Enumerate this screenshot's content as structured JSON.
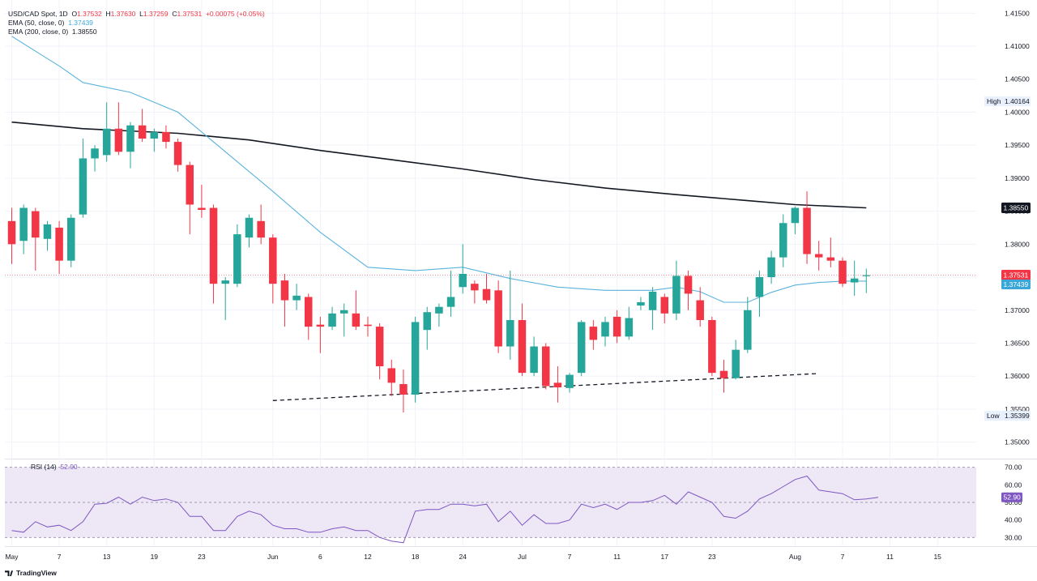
{
  "header": {
    "symbol": "USD/CAD Spot, 1D",
    "o_label": "O",
    "o_value": "1.37532",
    "h_label": "H",
    "h_value": "1.37630",
    "l_label": "L",
    "l_value": "1.37259",
    "c_label": "C",
    "c_value": "1.37531",
    "change": "+0.00075 (+0.05%)",
    "ema50_label": "EMA (50, close, 0)",
    "ema50_value": "1.37439",
    "ema200_label": "EMA (200, close, 0)",
    "ema200_value": "1.38550"
  },
  "rsi_panel": {
    "label": "RSI (14)",
    "value": "52.90"
  },
  "brand": {
    "name": "TradingView"
  },
  "colors": {
    "up": "#26a69a",
    "down": "#f23645",
    "ema50": "#5ab3dc",
    "ema200": "#131722",
    "rsi_line": "#7e57c2",
    "rsi_band": "#ede7f6",
    "last_price": "#f23645"
  },
  "chart_data": [
    {
      "type": "candlestick",
      "title": "USD/CAD Spot, 1D",
      "y_range": [
        1.3475,
        1.417
      ],
      "y_ticks": [
        "1.35000",
        "1.35500",
        "1.36000",
        "1.36500",
        "1.37000",
        "1.37500",
        "1.38000",
        "1.38500",
        "1.39000",
        "1.39500",
        "1.40000",
        "1.40500",
        "1.41000",
        "1.41500"
      ],
      "x_labels": [
        {
          "label": "May",
          "index": 0
        },
        {
          "label": "7",
          "index": 4
        },
        {
          "label": "13",
          "index": 8
        },
        {
          "label": "19",
          "index": 12
        },
        {
          "label": "23",
          "index": 16
        },
        {
          "label": "Jun",
          "index": 22
        },
        {
          "label": "6",
          "index": 26
        },
        {
          "label": "12",
          "index": 30
        },
        {
          "label": "18",
          "index": 34
        },
        {
          "label": "24",
          "index": 38
        },
        {
          "label": "Jul",
          "index": 43
        },
        {
          "label": "7",
          "index": 47
        },
        {
          "label": "11",
          "index": 51
        },
        {
          "label": "17",
          "index": 55
        },
        {
          "label": "23",
          "index": 59
        },
        {
          "label": "Aug",
          "index": 66
        },
        {
          "label": "7",
          "index": 70
        },
        {
          "label": "11",
          "index": 74
        },
        {
          "label": "15",
          "index": 78
        }
      ],
      "candles": [
        {
          "o": 1.3835,
          "h": 1.3855,
          "l": 1.377,
          "c": 1.38
        },
        {
          "o": 1.3805,
          "h": 1.386,
          "l": 1.3785,
          "c": 1.3855
        },
        {
          "o": 1.385,
          "h": 1.3855,
          "l": 1.376,
          "c": 1.381
        },
        {
          "o": 1.3808,
          "h": 1.3835,
          "l": 1.379,
          "c": 1.383
        },
        {
          "o": 1.3825,
          "h": 1.3835,
          "l": 1.3755,
          "c": 1.3775
        },
        {
          "o": 1.3775,
          "h": 1.3845,
          "l": 1.3765,
          "c": 1.384
        },
        {
          "o": 1.3845,
          "h": 1.396,
          "l": 1.384,
          "c": 1.393
        },
        {
          "o": 1.393,
          "h": 1.395,
          "l": 1.391,
          "c": 1.3945
        },
        {
          "o": 1.3935,
          "h": 1.4015,
          "l": 1.3925,
          "c": 1.3975
        },
        {
          "o": 1.3975,
          "h": 1.4015,
          "l": 1.3935,
          "c": 1.394
        },
        {
          "o": 1.394,
          "h": 1.3985,
          "l": 1.3915,
          "c": 1.398
        },
        {
          "o": 1.398,
          "h": 1.4005,
          "l": 1.3955,
          "c": 1.396
        },
        {
          "o": 1.396,
          "h": 1.3975,
          "l": 1.394,
          "c": 1.397
        },
        {
          "o": 1.397,
          "h": 1.398,
          "l": 1.3945,
          "c": 1.3955
        },
        {
          "o": 1.3955,
          "h": 1.396,
          "l": 1.391,
          "c": 1.392
        },
        {
          "o": 1.392,
          "h": 1.3925,
          "l": 1.3815,
          "c": 1.386
        },
        {
          "o": 1.3855,
          "h": 1.389,
          "l": 1.384,
          "c": 1.3852
        },
        {
          "o": 1.3855,
          "h": 1.386,
          "l": 1.371,
          "c": 1.374
        },
        {
          "o": 1.374,
          "h": 1.375,
          "l": 1.3685,
          "c": 1.3745
        },
        {
          "o": 1.374,
          "h": 1.383,
          "l": 1.3735,
          "c": 1.3815
        },
        {
          "o": 1.381,
          "h": 1.3845,
          "l": 1.3795,
          "c": 1.384
        },
        {
          "o": 1.3835,
          "h": 1.386,
          "l": 1.38,
          "c": 1.381
        },
        {
          "o": 1.381,
          "h": 1.3815,
          "l": 1.371,
          "c": 1.374
        },
        {
          "o": 1.3745,
          "h": 1.3755,
          "l": 1.3675,
          "c": 1.3715
        },
        {
          "o": 1.3715,
          "h": 1.374,
          "l": 1.37,
          "c": 1.3722
        },
        {
          "o": 1.372,
          "h": 1.3725,
          "l": 1.3655,
          "c": 1.3675
        },
        {
          "o": 1.3678,
          "h": 1.369,
          "l": 1.3635,
          "c": 1.3675
        },
        {
          "o": 1.3675,
          "h": 1.3705,
          "l": 1.367,
          "c": 1.3695
        },
        {
          "o": 1.3695,
          "h": 1.371,
          "l": 1.366,
          "c": 1.37
        },
        {
          "o": 1.3695,
          "h": 1.373,
          "l": 1.367,
          "c": 1.3675
        },
        {
          "o": 1.3678,
          "h": 1.369,
          "l": 1.366,
          "c": 1.3676
        },
        {
          "o": 1.3675,
          "h": 1.368,
          "l": 1.3595,
          "c": 1.3615
        },
        {
          "o": 1.3612,
          "h": 1.3625,
          "l": 1.357,
          "c": 1.359
        },
        {
          "o": 1.3588,
          "h": 1.361,
          "l": 1.3545,
          "c": 1.3572
        },
        {
          "o": 1.3572,
          "h": 1.369,
          "l": 1.356,
          "c": 1.3682
        },
        {
          "o": 1.367,
          "h": 1.3705,
          "l": 1.364,
          "c": 1.3697
        },
        {
          "o": 1.3695,
          "h": 1.371,
          "l": 1.3675,
          "c": 1.3705
        },
        {
          "o": 1.3705,
          "h": 1.376,
          "l": 1.369,
          "c": 1.372
        },
        {
          "o": 1.3735,
          "h": 1.38,
          "l": 1.3725,
          "c": 1.3755
        },
        {
          "o": 1.374,
          "h": 1.3745,
          "l": 1.371,
          "c": 1.373
        },
        {
          "o": 1.3732,
          "h": 1.3755,
          "l": 1.371,
          "c": 1.3715
        },
        {
          "o": 1.373,
          "h": 1.3745,
          "l": 1.3635,
          "c": 1.3645
        },
        {
          "o": 1.3645,
          "h": 1.376,
          "l": 1.3625,
          "c": 1.3685
        },
        {
          "o": 1.3685,
          "h": 1.371,
          "l": 1.36,
          "c": 1.3605
        },
        {
          "o": 1.3605,
          "h": 1.366,
          "l": 1.36,
          "c": 1.3645
        },
        {
          "o": 1.3645,
          "h": 1.365,
          "l": 1.358,
          "c": 1.3585
        },
        {
          "o": 1.359,
          "h": 1.3615,
          "l": 1.356,
          "c": 1.3583
        },
        {
          "o": 1.3582,
          "h": 1.3605,
          "l": 1.3575,
          "c": 1.3602
        },
        {
          "o": 1.3605,
          "h": 1.3685,
          "l": 1.36,
          "c": 1.3682
        },
        {
          "o": 1.3675,
          "h": 1.3685,
          "l": 1.364,
          "c": 1.3655
        },
        {
          "o": 1.366,
          "h": 1.369,
          "l": 1.3645,
          "c": 1.3682
        },
        {
          "o": 1.369,
          "h": 1.37,
          "l": 1.365,
          "c": 1.366
        },
        {
          "o": 1.366,
          "h": 1.3705,
          "l": 1.3655,
          "c": 1.3688
        },
        {
          "o": 1.3707,
          "h": 1.372,
          "l": 1.37,
          "c": 1.3712
        },
        {
          "o": 1.37,
          "h": 1.3735,
          "l": 1.367,
          "c": 1.3728
        },
        {
          "o": 1.372,
          "h": 1.3725,
          "l": 1.368,
          "c": 1.3695
        },
        {
          "o": 1.3695,
          "h": 1.3775,
          "l": 1.3685,
          "c": 1.3752
        },
        {
          "o": 1.3752,
          "h": 1.376,
          "l": 1.37,
          "c": 1.3725
        },
        {
          "o": 1.3715,
          "h": 1.3735,
          "l": 1.3675,
          "c": 1.3685
        },
        {
          "o": 1.3685,
          "h": 1.369,
          "l": 1.36,
          "c": 1.3605
        },
        {
          "o": 1.3608,
          "h": 1.3625,
          "l": 1.3575,
          "c": 1.3597
        },
        {
          "o": 1.3597,
          "h": 1.3655,
          "l": 1.3595,
          "c": 1.364
        },
        {
          "o": 1.364,
          "h": 1.372,
          "l": 1.3635,
          "c": 1.37
        },
        {
          "o": 1.372,
          "h": 1.376,
          "l": 1.369,
          "c": 1.375
        },
        {
          "o": 1.375,
          "h": 1.379,
          "l": 1.374,
          "c": 1.378
        },
        {
          "o": 1.378,
          "h": 1.3845,
          "l": 1.3765,
          "c": 1.3832
        },
        {
          "o": 1.3832,
          "h": 1.3857,
          "l": 1.3815,
          "c": 1.3855
        },
        {
          "o": 1.3855,
          "h": 1.388,
          "l": 1.377,
          "c": 1.3785
        },
        {
          "o": 1.3785,
          "h": 1.3805,
          "l": 1.376,
          "c": 1.378
        },
        {
          "o": 1.378,
          "h": 1.381,
          "l": 1.3765,
          "c": 1.3775
        },
        {
          "o": 1.3775,
          "h": 1.378,
          "l": 1.3735,
          "c": 1.374
        },
        {
          "o": 1.3742,
          "h": 1.3775,
          "l": 1.3722,
          "c": 1.3748
        },
        {
          "o": 1.3753,
          "h": 1.3763,
          "l": 1.3726,
          "c": 1.3753
        }
      ],
      "ema50": [
        [
          0,
          1.4115
        ],
        [
          4,
          1.407
        ],
        [
          6,
          1.4045
        ],
        [
          10,
          1.403
        ],
        [
          14,
          1.4
        ],
        [
          18,
          1.394
        ],
        [
          22,
          1.388
        ],
        [
          26,
          1.3818
        ],
        [
          30,
          1.3765
        ],
        [
          34,
          1.376
        ],
        [
          38,
          1.3765
        ],
        [
          42,
          1.3748
        ],
        [
          46,
          1.3735
        ],
        [
          50,
          1.373
        ],
        [
          54,
          1.373
        ],
        [
          56,
          1.3735
        ],
        [
          58,
          1.3728
        ],
        [
          60,
          1.3712
        ],
        [
          62,
          1.3712
        ],
        [
          64,
          1.3727
        ],
        [
          66,
          1.3738
        ],
        [
          68,
          1.3742
        ],
        [
          70,
          1.3744
        ],
        [
          72,
          1.3744
        ]
      ],
      "ema200": [
        [
          0,
          1.3985
        ],
        [
          6,
          1.3975
        ],
        [
          14,
          1.3968
        ],
        [
          20,
          1.3958
        ],
        [
          26,
          1.3942
        ],
        [
          32,
          1.3928
        ],
        [
          38,
          1.3914
        ],
        [
          44,
          1.3898
        ],
        [
          50,
          1.3885
        ],
        [
          56,
          1.3875
        ],
        [
          62,
          1.3866
        ],
        [
          66,
          1.386
        ],
        [
          72,
          1.3855
        ]
      ],
      "trendline": {
        "start": [
          22,
          1.3563
        ],
        "end": [
          68,
          1.3604
        ],
        "style": "dashed"
      },
      "high_marker": {
        "label": "High",
        "value": 1.40164,
        "text": "1.40164"
      },
      "low_marker": {
        "label": "Low",
        "value": 1.35399,
        "text": "1.35399"
      },
      "last_price": {
        "value": 1.37531,
        "text": "1.37531"
      },
      "ema200_tag": {
        "value": 1.3855,
        "text": "1.38550"
      },
      "ema50_tag": {
        "value": 1.37439,
        "text": "1.37439"
      }
    },
    {
      "type": "line",
      "title": "RSI (14)",
      "y_range": [
        26,
        74
      ],
      "y_ticks": [
        "30.00",
        "40.00",
        "50.00",
        "60.00",
        "70.00"
      ],
      "overbought": 70,
      "oversold": 30,
      "midline": 50,
      "values": [
        [
          0,
          34
        ],
        [
          1,
          33
        ],
        [
          2,
          39
        ],
        [
          3,
          36
        ],
        [
          4,
          37
        ],
        [
          5,
          34
        ],
        [
          6,
          39
        ],
        [
          7,
          49
        ],
        [
          8,
          49.5
        ],
        [
          9,
          53
        ],
        [
          10,
          49
        ],
        [
          11,
          53
        ],
        [
          12,
          51
        ],
        [
          13,
          52
        ],
        [
          14,
          50
        ],
        [
          15,
          42
        ],
        [
          16,
          42
        ],
        [
          17,
          34
        ],
        [
          18,
          34
        ],
        [
          19,
          42
        ],
        [
          20,
          45
        ],
        [
          21,
          43
        ],
        [
          22,
          37
        ],
        [
          23,
          35
        ],
        [
          24,
          35
        ],
        [
          25,
          33
        ],
        [
          26,
          33
        ],
        [
          27,
          35
        ],
        [
          28,
          36
        ],
        [
          29,
          34
        ],
        [
          30,
          34
        ],
        [
          31,
          30
        ],
        [
          32,
          28
        ],
        [
          33,
          27
        ],
        [
          34,
          45
        ],
        [
          35,
          46
        ],
        [
          36,
          46
        ],
        [
          37,
          49
        ],
        [
          38,
          49
        ],
        [
          39,
          48
        ],
        [
          40,
          49
        ],
        [
          41,
          39
        ],
        [
          42,
          45
        ],
        [
          43,
          37
        ],
        [
          44,
          43
        ],
        [
          45,
          38
        ],
        [
          46,
          38
        ],
        [
          47,
          40
        ],
        [
          48,
          49
        ],
        [
          49,
          47
        ],
        [
          50,
          49
        ],
        [
          51,
          46
        ],
        [
          52,
          50
        ],
        [
          53,
          50
        ],
        [
          54,
          51
        ],
        [
          55,
          54
        ],
        [
          56,
          49
        ],
        [
          57,
          56
        ],
        [
          58,
          53
        ],
        [
          59,
          50
        ],
        [
          60,
          42
        ],
        [
          61,
          41
        ],
        [
          62,
          45
        ],
        [
          63,
          52
        ],
        [
          64,
          55
        ],
        [
          65,
          59
        ],
        [
          66,
          63
        ],
        [
          67,
          65
        ],
        [
          68,
          57
        ],
        [
          69,
          56
        ],
        [
          70,
          55
        ],
        [
          71,
          51.5
        ],
        [
          72,
          52
        ],
        [
          73,
          52.9
        ]
      ]
    }
  ]
}
